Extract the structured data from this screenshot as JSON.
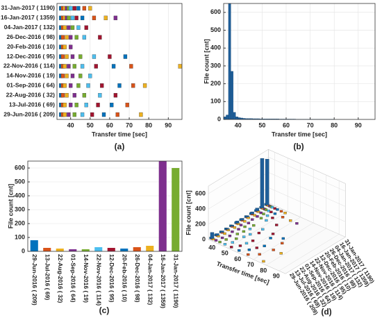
{
  "chart_data": [
    {
      "type": "strip",
      "label": "(a)",
      "xlabel": "Transfer time [sec]",
      "xlim": [
        33,
        97
      ],
      "xticks": [
        40,
        50,
        60,
        70,
        80,
        90
      ],
      "grid": true,
      "colors": [
        "#0072bd",
        "#d95319",
        "#edb120",
        "#7e2f8e",
        "#77ac30",
        "#4dbeee",
        "#a2142f"
      ],
      "rows": [
        {
          "label": "31-Jan-2017 ( 1190)",
          "x": [
            35,
            36,
            37,
            38,
            39,
            40,
            42,
            44,
            47,
            50
          ]
        },
        {
          "label": "16-Jan-2017 ( 1359)",
          "x": [
            35,
            36,
            37,
            38,
            39,
            41,
            43,
            46,
            52,
            58,
            63
          ]
        },
        {
          "label": "04-Jan-2017 ( 132)",
          "x": [
            35,
            36,
            37,
            39,
            41,
            44,
            48
          ]
        },
        {
          "label": "26-Dec-2016 ( 98)",
          "x": [
            35,
            36,
            38,
            40,
            43,
            47,
            55
          ]
        },
        {
          "label": "20-Feb-2016 ( 10)",
          "x": [
            35,
            36,
            37,
            40
          ]
        },
        {
          "label": "12-Dec-2016 ( 95)",
          "x": [
            35,
            36,
            38,
            41,
            45,
            52,
            60,
            68
          ]
        },
        {
          "label": "22-Nov-2016 ( 114)",
          "x": [
            35,
            36,
            37,
            39,
            42,
            46,
            53,
            62,
            71,
            96
          ]
        },
        {
          "label": "14-Nov-2016 ( 19)",
          "x": [
            35,
            36,
            38,
            41,
            45,
            50
          ]
        },
        {
          "label": "01-Sep-2016 ( 64)",
          "x": [
            35,
            36,
            37,
            40,
            44,
            49,
            56,
            65,
            72,
            78
          ]
        },
        {
          "label": "22-Aug-2016 ( 32)",
          "x": [
            35,
            36,
            38,
            42,
            47,
            55,
            63
          ]
        },
        {
          "label": "13-Jul-2016 ( 69)",
          "x": [
            35,
            36,
            37,
            40,
            43,
            48,
            54,
            61,
            69
          ]
        },
        {
          "label": "29-Jun-2016 ( 209)",
          "x": [
            35,
            36,
            37,
            39,
            42,
            46,
            51,
            57,
            64,
            76
          ]
        }
      ]
    },
    {
      "type": "histogram",
      "label": "(b)",
      "xlabel": "Transfer time [sec]",
      "ylabel": "File count [cnt]",
      "color": "#1f5f9a",
      "grid": true,
      "xlim": [
        34,
        97
      ],
      "xticks": [
        40,
        50,
        60,
        70,
        80,
        90
      ],
      "ylim": [
        0,
        650
      ],
      "yticks": [
        0,
        100,
        200,
        300,
        400,
        500,
        600
      ],
      "bins": [
        34,
        35,
        36,
        37,
        38,
        39,
        40,
        41,
        42,
        43,
        44,
        45,
        46,
        47,
        48,
        49,
        50,
        51,
        52,
        53,
        54,
        55,
        56,
        57,
        58,
        59,
        60,
        61,
        62,
        63,
        64,
        65,
        66,
        67,
        68,
        69,
        70,
        71,
        72,
        73,
        74,
        75,
        76,
        77,
        78,
        79,
        80
      ],
      "counts": [
        15,
        25,
        650,
        270,
        40,
        15,
        10,
        8,
        6,
        5,
        5,
        5,
        4,
        4,
        4,
        3,
        3,
        3,
        3,
        3,
        3,
        3,
        3,
        2,
        2,
        2,
        2,
        2,
        2,
        2,
        1,
        1,
        1,
        1,
        1,
        1,
        1,
        1,
        1,
        1,
        1,
        1,
        1,
        1,
        1,
        1
      ]
    },
    {
      "type": "bar",
      "label": "(c)",
      "ylabel": "File count [cnt]",
      "grid": true,
      "ylim": [
        0,
        650
      ],
      "yticks": [
        0,
        100,
        200,
        300,
        400,
        500,
        600
      ],
      "colors": [
        "#0072bd",
        "#d95319",
        "#edb120",
        "#7e2f8e",
        "#77ac30",
        "#4dbeee",
        "#a2142f"
      ],
      "categories": [
        "29-Jun-2016 ( 209)",
        "13-Jul-2016 ( 69)",
        "22-Aug-2016 ( 32)",
        "01-Sep-2016 ( 64)",
        "14-Nov-2016 ( 19)",
        "22-Nov-2016 ( 114)",
        "12-Dec-2016 ( 95)",
        "20-Feb-2016 ( 10)",
        "26-Dec-2016 ( 98)",
        "04-Jan-2017 ( 132)",
        "16-Jan-2017 ( 1359)",
        "31-Jan-2017 ( 1190)"
      ],
      "values": [
        80,
        25,
        20,
        15,
        15,
        30,
        25,
        20,
        30,
        40,
        650,
        600
      ]
    },
    {
      "type": "bar3d",
      "label": "(d)",
      "xlabel": "Transfer time [sec]",
      "zlabel": "File count [cnt]",
      "xlim": [
        35,
        95
      ],
      "xticks": [
        40,
        50,
        60,
        70,
        80,
        90
      ],
      "zlim": [
        0,
        700
      ],
      "zticks": [
        0,
        200,
        400,
        600
      ],
      "color": "#1f5f9a",
      "peak_x": 36,
      "categories": [
        "29-Jun-2016 ( 209)",
        "13-Jul-2016 ( 69)",
        "22-Aug-2016 ( 32)",
        "01-Sep-2016 ( 64)",
        "14-Nov-2016 ( 19)",
        "22-Nov-2016 ( 114)",
        "12-Dec-2016 ( 95)",
        "20-Feb-2016 ( 10)",
        "26-Dec-2016 ( 98)",
        "04-Jan-2017 ( 132)",
        "16-Jan-2017 ( 1359)",
        "31-Jan-2017 ( 1190)"
      ],
      "values": [
        80,
        25,
        20,
        15,
        15,
        30,
        25,
        20,
        30,
        40,
        650,
        600
      ]
    }
  ]
}
